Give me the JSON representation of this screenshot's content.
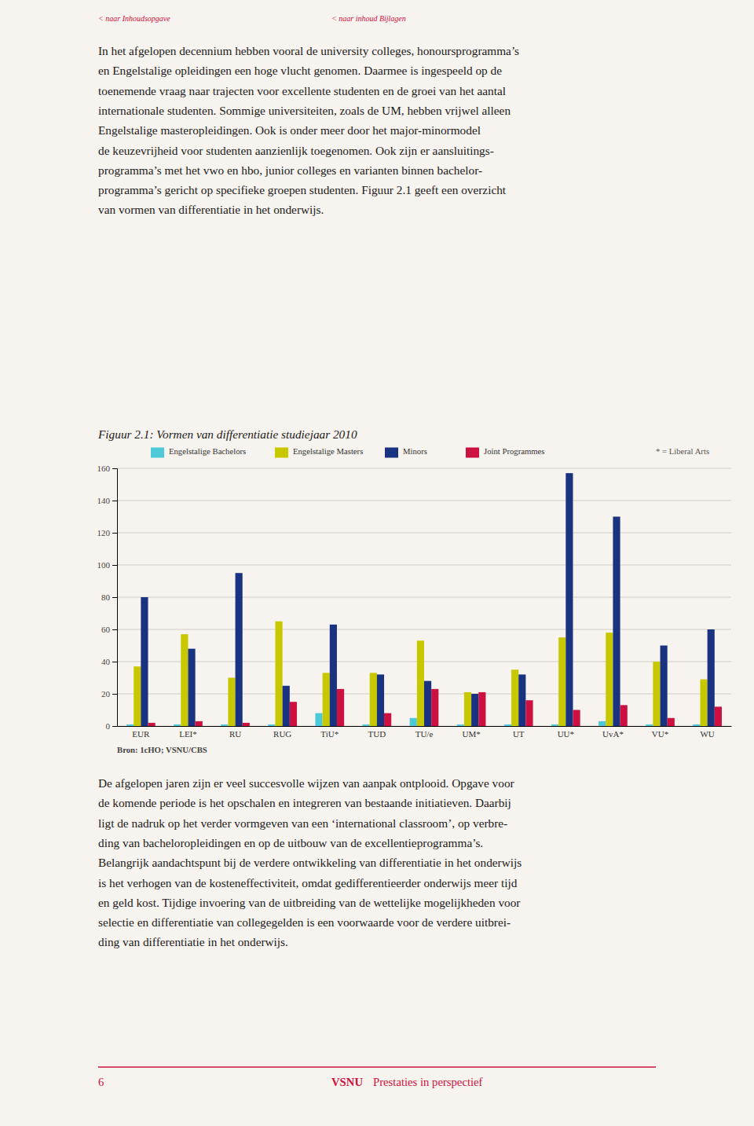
{
  "chart_data": {
    "type": "bar",
    "title": "Figuur 2.1: Vormen van differentiatie studiejaar 2010",
    "categories": [
      "EUR",
      "LEI*",
      "RU",
      "RUG",
      "TiU*",
      "TUD",
      "TU/e",
      "UM*",
      "UT",
      "UU*",
      "UvA*",
      "VU*",
      "WU"
    ],
    "series": [
      {
        "name": "Engelstalige Bachelors",
        "color": "#4DC8D8",
        "values": [
          1,
          1,
          1,
          1,
          8,
          1,
          5,
          1,
          1,
          1,
          3,
          1,
          1
        ]
      },
      {
        "name": "Engelstalige Masters",
        "color": "#C8C800",
        "values": [
          37,
          57,
          30,
          65,
          33,
          33,
          53,
          21,
          35,
          55,
          58,
          40,
          29
        ]
      },
      {
        "name": "Minors",
        "color": "#1A3380",
        "values": [
          80,
          48,
          95,
          25,
          63,
          32,
          28,
          20,
          32,
          157,
          130,
          50,
          60
        ]
      },
      {
        "name": "Joint Programmes",
        "color": "#CC1040",
        "values": [
          2,
          3,
          2,
          15,
          23,
          8,
          23,
          21,
          16,
          10,
          13,
          5,
          12
        ]
      }
    ],
    "ylim": [
      0,
      160
    ],
    "yticks": [
      0,
      20,
      40,
      60,
      80,
      100,
      120,
      140,
      160
    ],
    "grid": true,
    "annotations": [
      "< naar Inhoudsopgave",
      "< naar inhoud Bijlagen",
      "In het afgelopen decennium hebben vooral de university colleges, honoursprogramma’s",
      "en Engelstalige opleidingen een hoge vlucht genomen. Daarmee is ingespeeld op de",
      "toenemende vraag naar trajecten voor excellente studenten en de groei van het aantal",
      "internationale studenten. Sommige universiteiten, zoals de UM, hebben vrijwel alleen",
      "Engelstalige masteropleidingen. Ook is onder meer door het major-minormodel",
      "de keuzevrijheid voor studenten aanzienlijk toegenomen. Ook zijn er aansluitings-",
      "programma’s met het vwo en hbo, junior colleges en varianten binnen bachelor-",
      "programma’s gericht op specifieke groepen studenten. Figuur 2.1 geeft een overzicht",
      "van vormen van differentiatie in het onderwijs.",
      "* = Liberal Arts",
      "Bron: 1cHO; VSNU/CBS",
      "De afgelopen jaren zijn er veel succesvolle wijzen van aanpak ontplooid. Opgave voor",
      "de komende periode is het opschalen en integreren van bestaande initiatieven. Daarbij",
      "ligt de nadruk op het verder vormgeven van een ‘international classroom’, op verbre-",
      "ding van bacheloropleidingen en op de uitbouw van de excellentieprogramma’s.",
      "Belangrijk aandachtspunt bij de verdere ontwikkeling van differentiatie in het onderwijs",
      "is het verhogen van de kosteneffectiviteit, omdat gedifferentieerder onderwijs meer tijd",
      "en geld kost. Tijdige invoering van de uitbreiding van de wettelijke mogelijkheden voor",
      "selectie en differentiatie van collegegelden is een voorwaarde voor de verdere uitbrei-",
      "ding van differentiatie in het onderwijs.",
      "6",
      "VSNU",
      "Prestaties in perspectief"
    ]
  }
}
